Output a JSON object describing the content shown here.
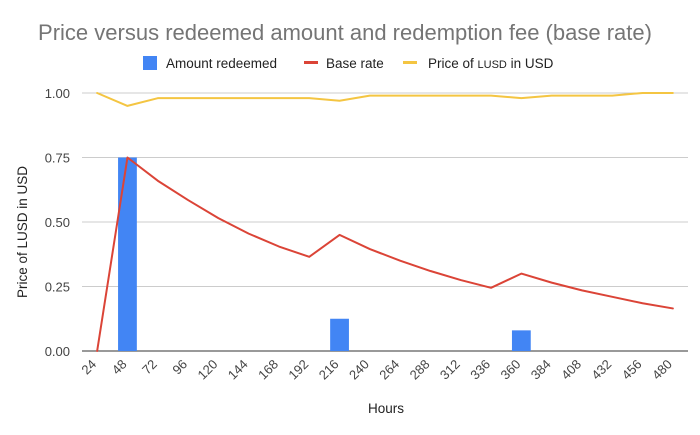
{
  "chart_data": {
    "type": "bar",
    "title": "Price versus redeemed amount and redemption fee (base rate)",
    "xlabel": "Hours",
    "ylabel": "Price of LUSD in USD",
    "ylim": [
      0,
      1
    ],
    "yticks": [
      "0.00",
      "0.25",
      "0.50",
      "0.75",
      "1.00"
    ],
    "grid": true,
    "legend_position": "top",
    "categories": [
      "24",
      "48",
      "72",
      "96",
      "120",
      "144",
      "168",
      "192",
      "216",
      "240",
      "264",
      "288",
      "312",
      "336",
      "360",
      "384",
      "408",
      "432",
      "456",
      "480"
    ],
    "series": [
      {
        "name": "Amount redeemed",
        "kind": "bar",
        "color": "#4285f4",
        "values": [
          0,
          0.75,
          0,
          0,
          0,
          0,
          0,
          0,
          0.125,
          0,
          0,
          0,
          0,
          0,
          0.08,
          0,
          0,
          0,
          0,
          0
        ]
      },
      {
        "name": "Base rate",
        "kind": "line",
        "color": "#db4437",
        "values": [
          0,
          0.75,
          0.66,
          0.585,
          0.515,
          0.455,
          0.405,
          0.365,
          0.45,
          0.395,
          0.35,
          0.31,
          0.275,
          0.245,
          0.3,
          0.265,
          0.235,
          0.21,
          0.185,
          0.165
        ]
      },
      {
        "name": "Price of LUSD in USD",
        "name_parts": [
          "Price of ",
          "LUSD",
          " in USD"
        ],
        "kind": "line",
        "color": "#f4c542",
        "values": [
          1.0,
          0.95,
          0.98,
          0.98,
          0.98,
          0.98,
          0.98,
          0.98,
          0.97,
          0.99,
          0.99,
          0.99,
          0.99,
          0.99,
          0.98,
          0.99,
          0.99,
          0.99,
          1.0,
          1.0
        ]
      }
    ]
  }
}
